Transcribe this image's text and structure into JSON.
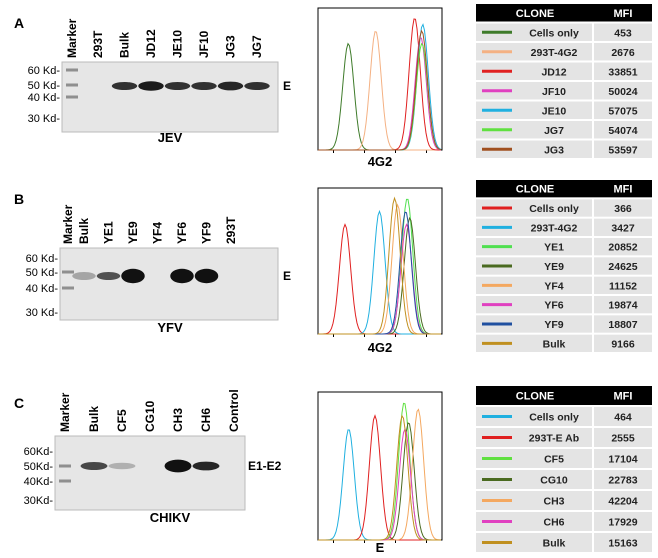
{
  "panels": [
    {
      "label": "A",
      "blot": {
        "marker": "Marker",
        "lanes": [
          "293T",
          "Bulk",
          "JD12",
          "JE10",
          "JF10",
          "JG3",
          "JG7"
        ],
        "mw": [
          "60 Kd-",
          "50 Kd-",
          "40 Kd-",
          "30 Kd-"
        ],
        "band": "E",
        "virus": "JEV"
      },
      "histogram": {
        "x_label": "4G2"
      },
      "table": {
        "header": [
          "CLONE",
          "MFI"
        ],
        "rows": [
          {
            "clone": "Cells only",
            "mfi": 453,
            "color": "#3e7b2a"
          },
          {
            "clone": "293T-4G2",
            "mfi": 2676,
            "color": "#f4b183"
          },
          {
            "clone": "JD12",
            "mfi": 33851,
            "color": "#e02020"
          },
          {
            "clone": "JF10",
            "mfi": 50024,
            "color": "#e040c0"
          },
          {
            "clone": "JE10",
            "mfi": 57075,
            "color": "#20b0e0"
          },
          {
            "clone": "JG7",
            "mfi": 54074,
            "color": "#60e040"
          },
          {
            "clone": "JG3",
            "mfi": 53597,
            "color": "#a05020"
          }
        ]
      }
    },
    {
      "label": "B",
      "blot": {
        "marker": "Marker",
        "lanes": [
          "Bulk",
          "YE1",
          "YE9",
          "YF4",
          "YF6",
          "YF9",
          "293T"
        ],
        "mw": [
          "60 Kd-",
          "50 Kd-",
          "40 Kd-",
          "30 Kd-"
        ],
        "band": "E",
        "virus": "YFV"
      },
      "histogram": {
        "x_label": "4G2"
      },
      "table": {
        "header": [
          "CLONE",
          "MFI"
        ],
        "rows": [
          {
            "clone": "Cells only",
            "mfi": 366,
            "color": "#e02020"
          },
          {
            "clone": "293T-4G2",
            "mfi": 3427,
            "color": "#20b0e0"
          },
          {
            "clone": "YE1",
            "mfi": 20852,
            "color": "#50e050"
          },
          {
            "clone": "YE9",
            "mfi": 24625,
            "color": "#4a6a20"
          },
          {
            "clone": "YF4",
            "mfi": 11152,
            "color": "#f4a860"
          },
          {
            "clone": "YF6",
            "mfi": 19874,
            "color": "#e040c0"
          },
          {
            "clone": "YF9",
            "mfi": 18807,
            "color": "#2050a0"
          },
          {
            "clone": "Bulk",
            "mfi": 9166,
            "color": "#c09020"
          }
        ]
      }
    },
    {
      "label": "C",
      "blot": {
        "marker": "Marker",
        "lanes": [
          "Bulk",
          "CF5",
          "CG10",
          "CH3",
          "CH6",
          "Control"
        ],
        "mw": [
          "60Kd-",
          "50Kd-",
          "40Kd-",
          "30Kd-"
        ],
        "band": "E1-E2",
        "virus": "CHIKV"
      },
      "histogram": {
        "x_label": "E"
      },
      "table": {
        "header": [
          "CLONE",
          "MFI"
        ],
        "rows": [
          {
            "clone": "Cells only",
            "mfi": 464,
            "color": "#20b0e0"
          },
          {
            "clone": "293T-E Ab",
            "mfi": 2555,
            "color": "#e02020"
          },
          {
            "clone": "CF5",
            "mfi": 17104,
            "color": "#60e040"
          },
          {
            "clone": "CG10",
            "mfi": 22783,
            "color": "#4a6a20"
          },
          {
            "clone": "CH3",
            "mfi": 42204,
            "color": "#f4a860"
          },
          {
            "clone": "CH6",
            "mfi": 17929,
            "color": "#e040c0"
          },
          {
            "clone": "Bulk",
            "mfi": 15163,
            "color": "#c09020"
          }
        ]
      }
    }
  ]
}
